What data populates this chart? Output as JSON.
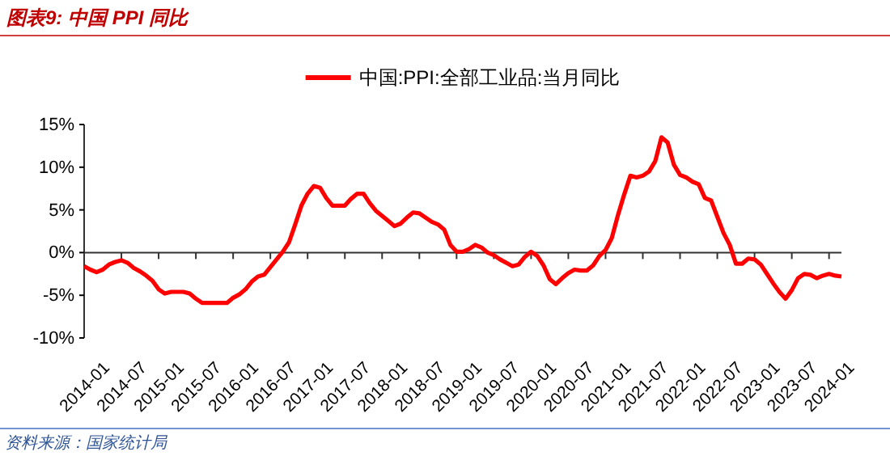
{
  "chart_data": {
    "type": "line",
    "title": "图表9:  中国 PPI 同比",
    "categories": [
      "2014-01",
      null,
      null,
      null,
      null,
      null,
      "2014-07",
      null,
      null,
      null,
      null,
      null,
      "2015-01",
      null,
      null,
      null,
      null,
      null,
      "2015-07",
      null,
      null,
      null,
      null,
      null,
      "2016-01",
      null,
      null,
      null,
      null,
      null,
      "2016-07",
      null,
      null,
      null,
      null,
      null,
      "2017-01",
      null,
      null,
      null,
      null,
      null,
      "2017-07",
      null,
      null,
      null,
      null,
      null,
      "2018-01",
      null,
      null,
      null,
      null,
      null,
      "2018-07",
      null,
      null,
      null,
      null,
      null,
      "2019-01",
      null,
      null,
      null,
      null,
      null,
      "2019-07",
      null,
      null,
      null,
      null,
      null,
      "2020-01",
      null,
      null,
      null,
      null,
      null,
      "2020-07",
      null,
      null,
      null,
      null,
      null,
      "2021-01",
      null,
      null,
      null,
      null,
      null,
      "2021-07",
      null,
      null,
      null,
      null,
      null,
      "2022-01",
      null,
      null,
      null,
      null,
      null,
      "2022-07",
      null,
      null,
      null,
      null,
      null,
      "2023-01",
      null,
      null,
      null,
      null,
      null,
      "2023-07",
      null,
      null,
      null,
      null,
      null,
      "2024-01",
      null,
      null
    ],
    "series": [
      {
        "name": "中国:PPI:全部工业品:当月同比",
        "color": "#ff0000",
        "values": [
          -1.6,
          -2.0,
          -2.3,
          -2.0,
          -1.4,
          -1.1,
          -0.9,
          -1.2,
          -1.8,
          -2.2,
          -2.7,
          -3.3,
          -4.3,
          -4.8,
          -4.6,
          -4.6,
          -4.6,
          -4.8,
          -5.4,
          -5.9,
          -5.9,
          -5.9,
          -5.9,
          -5.9,
          -5.3,
          -4.9,
          -4.3,
          -3.4,
          -2.8,
          -2.6,
          -1.7,
          -0.8,
          0.1,
          1.2,
          3.3,
          5.5,
          6.9,
          7.8,
          7.6,
          6.4,
          5.5,
          5.5,
          5.5,
          6.3,
          6.9,
          6.9,
          5.8,
          4.9,
          4.3,
          3.7,
          3.1,
          3.4,
          4.1,
          4.7,
          4.6,
          4.1,
          3.6,
          3.3,
          2.7,
          0.9,
          0.1,
          0.1,
          0.4,
          0.9,
          0.6,
          0.0,
          -0.3,
          -0.8,
          -1.2,
          -1.6,
          -1.4,
          -0.5,
          0.1,
          -0.4,
          -1.5,
          -3.1,
          -3.7,
          -3.0,
          -2.4,
          -2.0,
          -2.1,
          -2.1,
          -1.5,
          -0.4,
          0.3,
          1.7,
          4.4,
          6.8,
          9.0,
          8.8,
          9.0,
          9.5,
          10.7,
          13.5,
          12.9,
          10.3,
          9.1,
          8.8,
          8.3,
          8.0,
          6.4,
          6.1,
          4.2,
          2.3,
          0.9,
          -1.3,
          -1.3,
          -0.7,
          -0.8,
          -1.4,
          -2.5,
          -3.6,
          -4.6,
          -5.4,
          -4.4,
          -3.0,
          -2.5,
          -2.6,
          -3.0,
          -2.7,
          -2.5,
          -2.7,
          -2.8
        ]
      }
    ],
    "ylim": [
      -10,
      15
    ],
    "yticks": [
      {
        "value": -10,
        "label": "-10%"
      },
      {
        "value": -5,
        "label": "-5%"
      },
      {
        "value": 0,
        "label": "0%"
      },
      {
        "value": 5,
        "label": "5%"
      },
      {
        "value": 10,
        "label": "10%"
      },
      {
        "value": 15,
        "label": "15%"
      }
    ],
    "legend": "top",
    "marker": "none",
    "line_style": "solid",
    "annotations": [
      "资料来源：国家统计局"
    ]
  }
}
